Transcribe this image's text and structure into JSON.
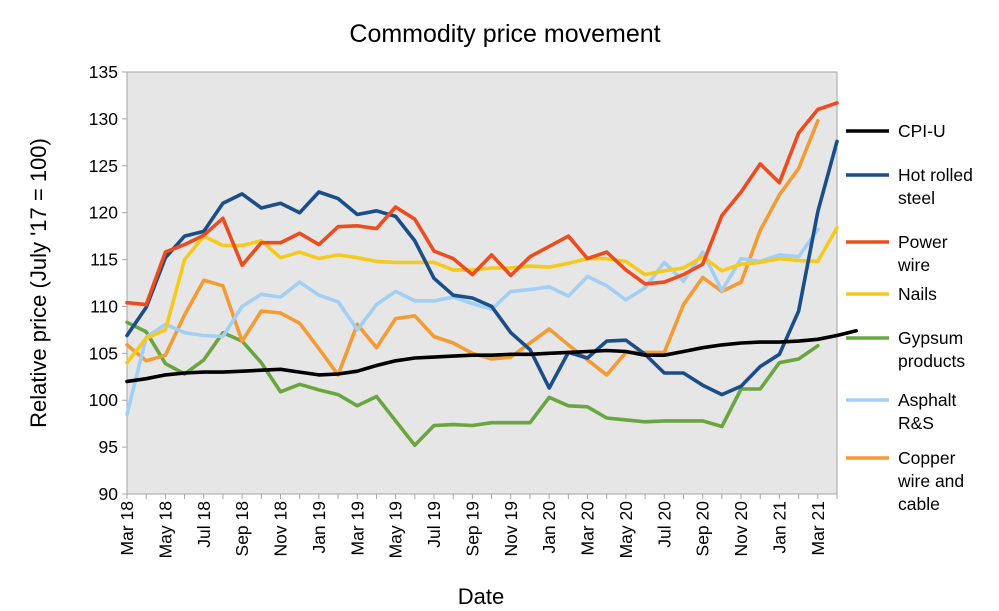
{
  "chart_data": {
    "type": "line",
    "title": "Commodity price movement",
    "xlabel": "Date",
    "ylabel": "Relative price (July '17 = 100)",
    "ylim": [
      90,
      135
    ],
    "yticks": [
      "90",
      "95",
      "100",
      "105",
      "110",
      "115",
      "120",
      "125",
      "130",
      "135"
    ],
    "grid": false,
    "legend_position": "right",
    "x_tick_labels": [
      "Mar 18",
      "May 18",
      "Jul 18",
      "Sep 18",
      "Nov 18",
      "Jan 19",
      "Mar 19",
      "May 19",
      "Jul 19",
      "Sep 19",
      "Nov 19",
      "Jan 20",
      "Mar 20",
      "May 20",
      "Jul 20",
      "Sep 20",
      "Nov 20",
      "Jan 21",
      "Mar 21"
    ],
    "series": [
      {
        "name": "CPI-U",
        "color": "#000000",
        "values": [
          102,
          102.3,
          102.7,
          102.9,
          103,
          103,
          103.1,
          103.2,
          103.3,
          103,
          102.7,
          102.8,
          103.1,
          103.7,
          104.2,
          104.5,
          104.6,
          104.7,
          104.8,
          104.8,
          104.9,
          104.9,
          105,
          105.1,
          105.2,
          105.3,
          105.2,
          104.8,
          104.8,
          105.2,
          105.6,
          105.9,
          106.1,
          106.2,
          106.2,
          106.3,
          106.5,
          106.9,
          107.4
        ]
      },
      {
        "name": "Hot rolled steel",
        "color": "#1a4e8a",
        "values": [
          106.9,
          109.9,
          115.2,
          117.5,
          118,
          121,
          122,
          120.5,
          121,
          120,
          122.2,
          121.5,
          119.8,
          120.2,
          119.6,
          117,
          113,
          111.2,
          110.9,
          110,
          107.2,
          105.4,
          101.3,
          105.1,
          104.5,
          106.3,
          106.4,
          104.9,
          102.9,
          102.9,
          101.6,
          100.6,
          101.5,
          103.6,
          104.9,
          109.5,
          120.1,
          127.6
        ]
      },
      {
        "name": "Power wire",
        "color": "#ee4b1e",
        "values": [
          110.4,
          110.2,
          115.8,
          116.6,
          117.6,
          119.4,
          114.4,
          116.8,
          116.8,
          117.8,
          116.6,
          118.5,
          118.6,
          118.3,
          120.6,
          119.3,
          115.9,
          115.1,
          113.4,
          115.5,
          113.3,
          115.3,
          116.4,
          117.5,
          115.1,
          115.8,
          113.9,
          112.4,
          112.6,
          113.4,
          114.5,
          119.7,
          122.2,
          125.2,
          123.2,
          128.5,
          131,
          131.7
        ]
      },
      {
        "name": "Nails",
        "color": "#f6ca1c",
        "values": [
          104,
          106.6,
          107.5,
          115,
          117.5,
          116.5,
          116.5,
          117,
          115.2,
          115.8,
          115.1,
          115.5,
          115.2,
          114.8,
          114.7,
          114.7,
          114.7,
          113.9,
          113.9,
          114.1,
          114.1,
          114.3,
          114.2,
          114.6,
          115.1,
          115.1,
          114.8,
          113.4,
          113.8,
          114.1,
          115.3,
          113.8,
          114.5,
          114.7,
          115.1,
          114.9,
          114.8,
          118.4
        ]
      },
      {
        "name": "Gypsum products",
        "color": "#6aa640",
        "values": [
          108.3,
          107.3,
          103.9,
          102.8,
          104.3,
          107.2,
          106.3,
          104,
          100.9,
          101.7,
          101.1,
          100.6,
          99.4,
          100.4,
          97.8,
          95.2,
          97.3,
          97.4,
          97.3,
          97.6,
          97.6,
          97.6,
          100.3,
          99.4,
          99.3,
          98.1,
          97.9,
          97.7,
          97.8,
          97.8,
          97.8,
          97.2,
          101.2,
          101.2,
          104,
          104.4,
          105.8
        ]
      },
      {
        "name": "Asphalt R&S",
        "color": "#a3cff4",
        "values": [
          98.5,
          106.7,
          108.1,
          107.2,
          106.9,
          106.8,
          110,
          111.3,
          111,
          112.6,
          111.2,
          110.5,
          107.5,
          110.2,
          111.6,
          110.6,
          110.6,
          111,
          110.3,
          109.7,
          111.6,
          111.8,
          112.1,
          111.1,
          113.2,
          112.2,
          110.7,
          112,
          114.7,
          112.7,
          115.8,
          111.7,
          115.1,
          114.8,
          115.5,
          115.3,
          118.2
        ]
      },
      {
        "name": "Copper wire and cable",
        "color": "#f49b33",
        "values": [
          105.9,
          104.2,
          104.8,
          109.1,
          112.8,
          112.2,
          106.3,
          109.5,
          109.3,
          108.2,
          105.5,
          102.7,
          108.1,
          105.6,
          108.7,
          109,
          106.8,
          106.1,
          105,
          104.4,
          104.6,
          106.1,
          107.6,
          105.9,
          104.3,
          102.7,
          105.1,
          105.1,
          105.1,
          110.2,
          113.1,
          111.6,
          112.6,
          118.1,
          121.9,
          124.7,
          129.8
        ]
      }
    ],
    "legend": [
      {
        "lines": [
          "CPI-U"
        ]
      },
      {
        "lines": [
          "Hot rolled",
          "steel"
        ]
      },
      {
        "lines": [
          "Power",
          "wire"
        ]
      },
      {
        "lines": [
          "Nails"
        ]
      },
      {
        "lines": [
          "Gypsum",
          "products"
        ]
      },
      {
        "lines": [
          "Asphalt",
          "R&S"
        ]
      },
      {
        "lines": [
          "Copper",
          "wire and",
          "cable"
        ]
      }
    ]
  }
}
